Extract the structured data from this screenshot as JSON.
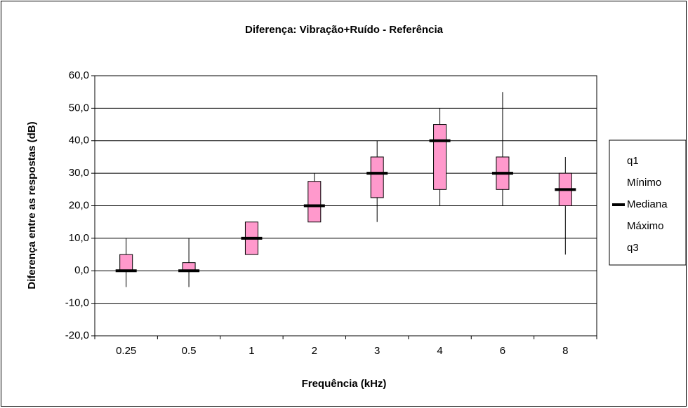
{
  "chart_data": {
    "type": "box",
    "title": "Diferença: Vibração+Ruído - Referência",
    "x_label": "Frequência (kHz)",
    "y_label": "Diferença entre as respostas (dB)",
    "categories": [
      "0.25",
      "0.5",
      "1",
      "2",
      "3",
      "4",
      "6",
      "8"
    ],
    "series": [
      {
        "name": "q1",
        "values": [
          0,
          0,
          5,
          15,
          22.5,
          25,
          25,
          20
        ]
      },
      {
        "name": "Mínimo",
        "values": [
          -5,
          -5,
          5,
          15,
          15,
          20,
          20,
          5
        ]
      },
      {
        "name": "Mediana",
        "color": "#000000",
        "values": [
          0,
          0,
          10,
          20,
          30,
          40,
          30,
          25
        ]
      },
      {
        "name": "Máximo",
        "values": [
          10,
          10,
          15,
          30,
          40,
          50,
          55,
          35
        ]
      },
      {
        "name": "q3",
        "values": [
          5,
          2.5,
          15,
          27.5,
          35,
          45,
          35,
          30
        ]
      }
    ],
    "box_color": "#ff99cc",
    "ylim": [
      -20,
      60
    ],
    "yticks": [
      {
        "value": -20,
        "label": "-20,0"
      },
      {
        "value": -10,
        "label": "-10,0"
      },
      {
        "value": 0,
        "label": "0,0"
      },
      {
        "value": 10,
        "label": "10,0"
      },
      {
        "value": 20,
        "label": "20,0"
      },
      {
        "value": 30,
        "label": "30,0"
      },
      {
        "value": 40,
        "label": "40,0"
      },
      {
        "value": 50,
        "label": "50,0"
      },
      {
        "value": 60,
        "label": "60,0"
      }
    ],
    "grid": true,
    "legend": "right"
  }
}
